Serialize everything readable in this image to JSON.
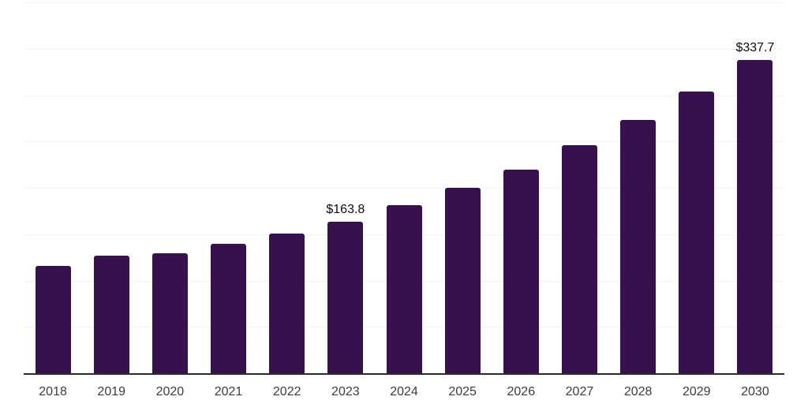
{
  "chart_data": {
    "type": "bar",
    "title": "",
    "xlabel": "",
    "ylabel": "",
    "categories": [
      "2018",
      "2019",
      "2020",
      "2021",
      "2022",
      "2023",
      "2024",
      "2025",
      "2026",
      "2027",
      "2028",
      "2029",
      "2030"
    ],
    "values": [
      116,
      127,
      129,
      140,
      151,
      163.8,
      181,
      200,
      220,
      246,
      273,
      304,
      337.7
    ],
    "data_labels": [
      null,
      null,
      null,
      null,
      null,
      "$163.8",
      null,
      null,
      null,
      null,
      null,
      null,
      "$337.7"
    ],
    "ylim": [
      0,
      400
    ],
    "gridline_step": 50,
    "grid": "horizontal, no y tick labels",
    "legend": "none",
    "colors": {
      "bar": "#36114D",
      "gridline": "#f1f1f1",
      "axis_line": "#2b2b2b",
      "tick_label": "#3d3d3d",
      "data_label": "#0d0d0d",
      "background": "#ffffff"
    }
  }
}
